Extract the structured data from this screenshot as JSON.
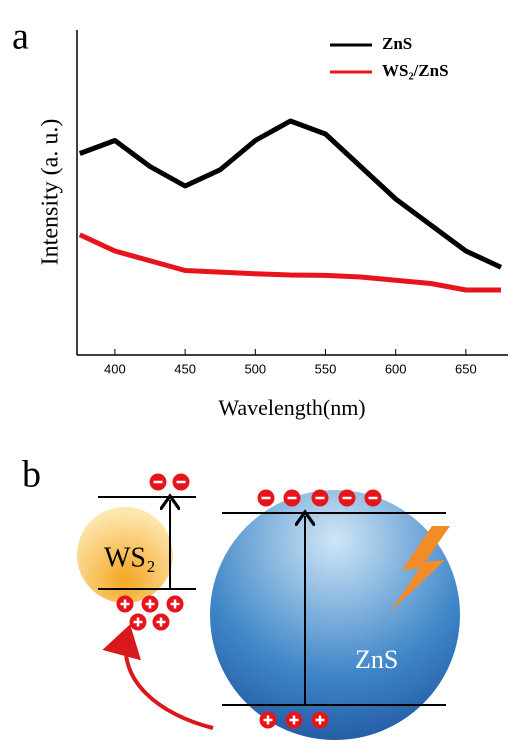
{
  "chart_data": {
    "type": "line",
    "label": "a",
    "xlabel": "Wavelength(nm)",
    "ylabel": "Intensity  (a. u.)",
    "x": [
      375,
      400,
      425,
      450,
      475,
      500,
      525,
      550,
      575,
      600,
      625,
      650,
      675
    ],
    "series": [
      {
        "name": "ZnS",
        "color": "#000000",
        "values": [
          62,
          66,
          58,
          52,
          57,
          66,
          72,
          68,
          58,
          48,
          40,
          32,
          27
        ]
      },
      {
        "name": "WS₂/ZnS",
        "color": "#e8141b",
        "values": [
          37,
          32,
          29,
          26,
          25.5,
          25,
          24.6,
          24.5,
          24,
          23,
          22,
          20,
          20
        ]
      }
    ],
    "xlim": [
      373,
      680
    ],
    "xticks": [
      400,
      450,
      500,
      550,
      600,
      650
    ],
    "ylim": [
      0,
      100
    ],
    "legend": "upper right"
  },
  "diagram": {
    "label": "b",
    "materials": [
      "WS₂",
      "ZnS"
    ]
  }
}
